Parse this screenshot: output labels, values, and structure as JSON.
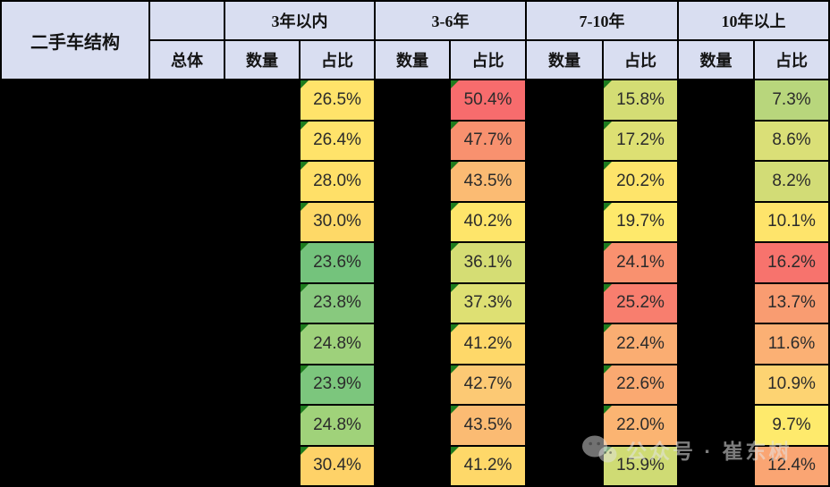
{
  "header": {
    "title": "二手车结构",
    "total": "总体",
    "qty": "数量",
    "share": "占比",
    "age_groups": [
      "3年以内",
      "3-6年",
      "7-10年",
      "10年以上"
    ]
  },
  "colors": {
    "header_bg": "#D9DEF1",
    "grid_background": "#000000",
    "flag_triangle_green": "#1D7B1E",
    "scale_green": "#74C37C",
    "scale_yellow": "#FFE36A",
    "scale_red": "#F76C6D"
  },
  "watermark": {
    "text": "公众号 · 崔东树",
    "icon": "wechat-icon"
  },
  "body": {
    "rows": [
      {
        "cells": [
          {
            "text": "26.5%",
            "color": "#FFE36A",
            "flag": true
          },
          {
            "text": "50.4%",
            "color": "#F76C6D",
            "flag": true
          },
          {
            "text": "15.8%",
            "color": "#D4DD74",
            "flag": true
          },
          {
            "text": "7.3%",
            "color": "#B8D67C",
            "flag": false
          }
        ]
      },
      {
        "cells": [
          {
            "text": "26.4%",
            "color": "#FFE36A",
            "flag": true
          },
          {
            "text": "47.7%",
            "color": "#F8916F",
            "flag": true
          },
          {
            "text": "17.2%",
            "color": "#DDE073",
            "flag": true
          },
          {
            "text": "8.6%",
            "color": "#DADF77",
            "flag": false
          }
        ]
      },
      {
        "cells": [
          {
            "text": "28.0%",
            "color": "#FFE068",
            "flag": true
          },
          {
            "text": "43.5%",
            "color": "#FBBB73",
            "flag": true
          },
          {
            "text": "20.2%",
            "color": "#FEE46A",
            "flag": true
          },
          {
            "text": "8.2%",
            "color": "#D2DC76",
            "flag": false
          }
        ]
      },
      {
        "cells": [
          {
            "text": "30.0%",
            "color": "#FED967",
            "flag": true
          },
          {
            "text": "40.2%",
            "color": "#FEE56A",
            "flag": true
          },
          {
            "text": "19.7%",
            "color": "#FEE96B",
            "flag": true
          },
          {
            "text": "10.1%",
            "color": "#FEE46B",
            "flag": false
          }
        ]
      },
      {
        "cells": [
          {
            "text": "23.6%",
            "color": "#74C37C",
            "flag": true
          },
          {
            "text": "36.1%",
            "color": "#D5DD74",
            "flag": true
          },
          {
            "text": "24.1%",
            "color": "#F9916F",
            "flag": true
          },
          {
            "text": "16.2%",
            "color": "#F7736D",
            "flag": false
          }
        ]
      },
      {
        "cells": [
          {
            "text": "23.8%",
            "color": "#88C97E",
            "flag": true
          },
          {
            "text": "37.3%",
            "color": "#DEE073",
            "flag": true
          },
          {
            "text": "25.2%",
            "color": "#F87E6E",
            "flag": true
          },
          {
            "text": "13.7%",
            "color": "#F99C71",
            "flag": false
          }
        ]
      },
      {
        "cells": [
          {
            "text": "24.8%",
            "color": "#9ED17B",
            "flag": true
          },
          {
            "text": "41.2%",
            "color": "#FED869",
            "flag": true
          },
          {
            "text": "22.4%",
            "color": "#FAAD72",
            "flag": true
          },
          {
            "text": "11.6%",
            "color": "#FBB074",
            "flag": false
          }
        ]
      },
      {
        "cells": [
          {
            "text": "23.9%",
            "color": "#7CC67D",
            "flag": true
          },
          {
            "text": "42.7%",
            "color": "#FCC974",
            "flag": true
          },
          {
            "text": "22.6%",
            "color": "#FAA971",
            "flag": true
          },
          {
            "text": "10.9%",
            "color": "#FDD372",
            "flag": false
          }
        ]
      },
      {
        "cells": [
          {
            "text": "24.8%",
            "color": "#A0D27A",
            "flag": true
          },
          {
            "text": "43.5%",
            "color": "#FBBB73",
            "flag": true
          },
          {
            "text": "22.0%",
            "color": "#FBB472",
            "flag": true
          },
          {
            "text": "9.7%",
            "color": "#FEEA6C",
            "flag": false
          }
        ]
      },
      {
        "cells": [
          {
            "text": "30.4%",
            "color": "#FED268",
            "flag": true
          },
          {
            "text": "41.2%",
            "color": "#FED869",
            "flag": true
          },
          {
            "text": "15.9%",
            "color": "#CFDB74",
            "flag": true
          },
          {
            "text": "12.4%",
            "color": "#FAA573",
            "flag": false
          }
        ]
      }
    ]
  },
  "chart_data": {
    "type": "table",
    "title": "二手车结构",
    "column_groups": [
      "总体",
      "3年以内",
      "3-6年",
      "7-10年",
      "10年以上"
    ],
    "subcolumns_per_age_group": [
      "数量",
      "占比"
    ],
    "row_count": 10,
    "visible_values_note": "仅各年龄段的占比列可见；行标签、总体列与数量列均被黑色遮盖",
    "share_series": [
      {
        "group": "3年以内",
        "values_pct": [
          26.5,
          26.4,
          28.0,
          30.0,
          23.6,
          23.8,
          24.8,
          23.9,
          24.8,
          30.4
        ]
      },
      {
        "group": "3-6年",
        "values_pct": [
          50.4,
          47.7,
          43.5,
          40.2,
          36.1,
          37.3,
          41.2,
          42.7,
          43.5,
          41.2
        ]
      },
      {
        "group": "7-10年",
        "values_pct": [
          15.8,
          17.2,
          20.2,
          19.7,
          24.1,
          25.2,
          22.4,
          22.6,
          22.0,
          15.9
        ]
      },
      {
        "group": "10年以上",
        "values_pct": [
          7.3,
          8.6,
          8.2,
          10.1,
          16.2,
          13.7,
          11.6,
          10.9,
          9.7,
          12.4
        ]
      }
    ],
    "legend_colors": {
      "low_green": "#74C37C",
      "mid_yellow": "#FFE36A",
      "high_red": "#F76C6D"
    }
  }
}
